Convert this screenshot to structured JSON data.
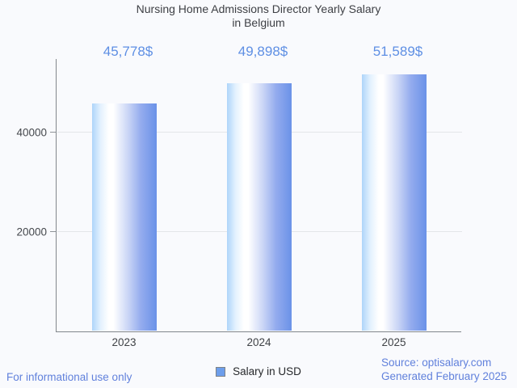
{
  "page": {
    "background_color": "#f9fafd"
  },
  "chart_data": {
    "type": "bar",
    "title": "Nursing Home Admissions Director Yearly Salary in Belgium",
    "title_lines": [
      "Nursing Home Admissions Director Yearly Salary",
      "in Belgium"
    ],
    "categories": [
      "2023",
      "2024",
      "2025"
    ],
    "values": [
      45778,
      49898,
      51589
    ],
    "value_labels": [
      "45,778$",
      "49,898$",
      "51,589$"
    ],
    "series": [
      {
        "name": "Salary in USD",
        "values": [
          45778,
          49898,
          51589
        ]
      }
    ],
    "xlabel": "",
    "ylabel": "",
    "y_ticks": [
      20000,
      40000
    ],
    "y_tick_labels": [
      "20000",
      "40000"
    ],
    "ylim": [
      0,
      54800
    ],
    "grid": "horizontal",
    "legend_position": "bottom-center",
    "colors": {
      "value_label": "#5e8fe4",
      "bar_gradient_left": "#aed5fa",
      "bar_gradient_mid": "#ffffff",
      "bar_gradient_right": "#6b92e8",
      "axis": "#82878c",
      "gridline": "#e4e6e9",
      "title_text": "#3e4045",
      "tick_text": "#45484d"
    }
  },
  "legend": {
    "label": "Salary in USD",
    "swatch_color": "#6d9eeb"
  },
  "footer": {
    "left_note": "For informational use only",
    "source_line": "Source: optisalary.com",
    "generated_line": "Generated February 2025",
    "link_color": "#6181dc"
  }
}
